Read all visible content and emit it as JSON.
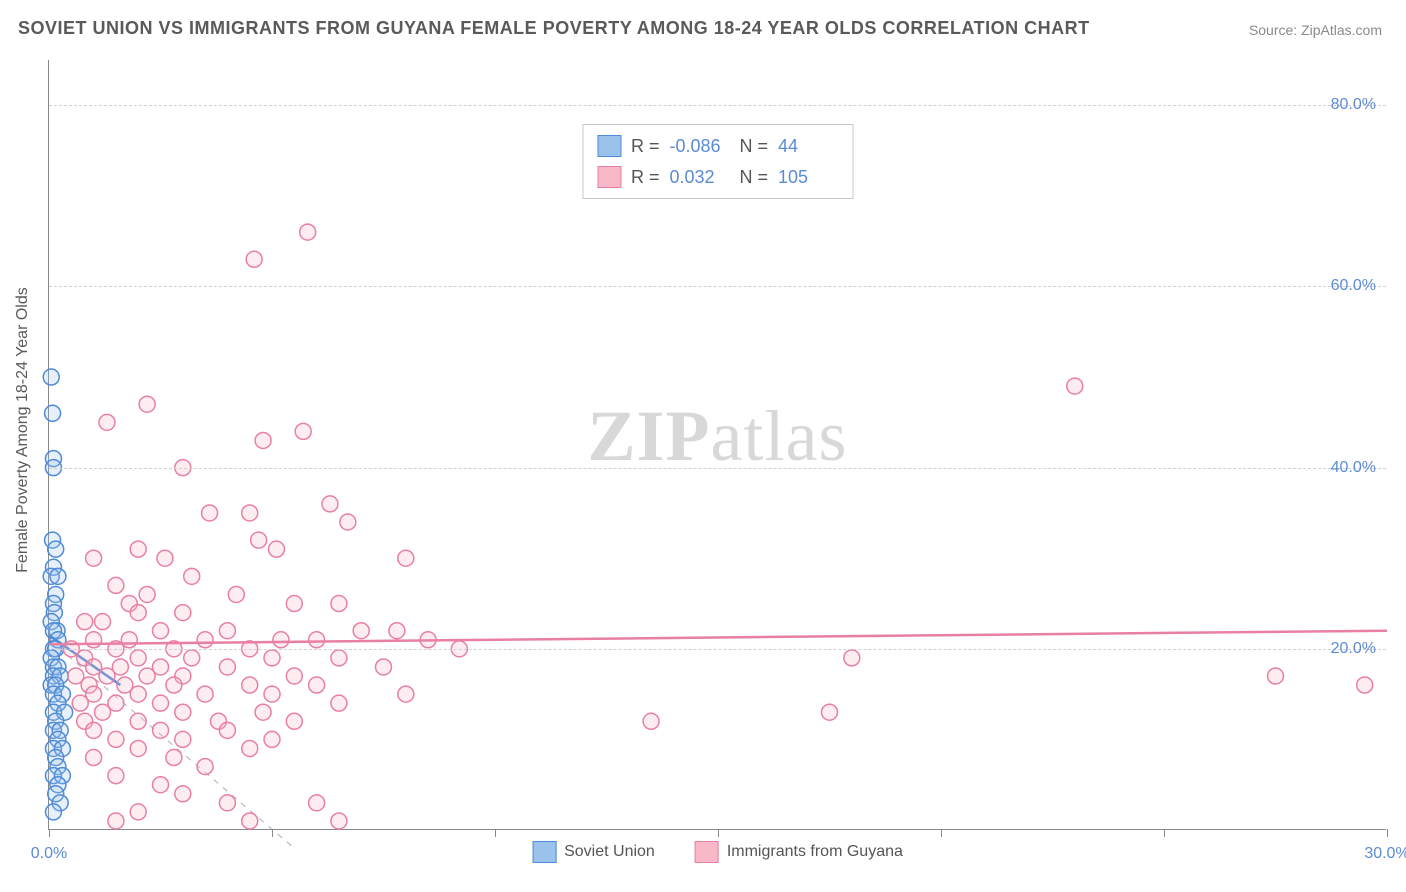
{
  "title": "SOVIET UNION VS IMMIGRANTS FROM GUYANA FEMALE POVERTY AMONG 18-24 YEAR OLDS CORRELATION CHART",
  "source": "Source: ZipAtlas.com",
  "watermark": {
    "bold": "ZIP",
    "rest": "atlas"
  },
  "y_axis_title": "Female Poverty Among 18-24 Year Olds",
  "chart": {
    "type": "scatter",
    "background_color": "#ffffff",
    "grid_color": "#d0d0d0",
    "axis_color": "#888888",
    "tick_label_color": "#5b8bd4",
    "text_color": "#5a5a5a",
    "xlim": [
      0,
      30
    ],
    "ylim": [
      0,
      85
    ],
    "x_ticks": [
      0,
      5,
      10,
      15,
      20,
      25,
      30
    ],
    "x_tick_labels_shown": {
      "0": "0.0%",
      "30": "30.0%"
    },
    "y_ticks": [
      20,
      40,
      60,
      80
    ],
    "y_tick_labels": {
      "20": "20.0%",
      "40": "40.0%",
      "60": "60.0%",
      "80": "80.0%"
    },
    "marker_radius": 8,
    "marker_stroke_width": 1.5,
    "marker_fill_opacity": 0.25,
    "trend_line_width": 2.5,
    "diag_dash": "6,6",
    "diag_color": "#bbbbbb"
  },
  "series": [
    {
      "id": "soviet",
      "label": "Soviet Union",
      "color_fill": "#9bc2ea",
      "color_stroke": "#4f8bd6",
      "R": "-0.086",
      "N": "44",
      "trend": {
        "x1": 0,
        "y1": 21.5,
        "x2": 1.6,
        "y2": 16.0
      },
      "points": [
        [
          0.05,
          50
        ],
        [
          0.08,
          46
        ],
        [
          0.1,
          41
        ],
        [
          0.1,
          40
        ],
        [
          0.08,
          32
        ],
        [
          0.15,
          31
        ],
        [
          0.1,
          29
        ],
        [
          0.05,
          28
        ],
        [
          0.2,
          28
        ],
        [
          0.15,
          26
        ],
        [
          0.1,
          25
        ],
        [
          0.12,
          24
        ],
        [
          0.05,
          23
        ],
        [
          0.18,
          22
        ],
        [
          0.1,
          22
        ],
        [
          0.2,
          21
        ],
        [
          0.1,
          20
        ],
        [
          0.15,
          20
        ],
        [
          0.05,
          19
        ],
        [
          0.1,
          18
        ],
        [
          0.2,
          18
        ],
        [
          0.1,
          17
        ],
        [
          0.25,
          17
        ],
        [
          0.05,
          16
        ],
        [
          0.15,
          16
        ],
        [
          0.1,
          15
        ],
        [
          0.3,
          15
        ],
        [
          0.2,
          14
        ],
        [
          0.1,
          13
        ],
        [
          0.35,
          13
        ],
        [
          0.15,
          12
        ],
        [
          0.1,
          11
        ],
        [
          0.25,
          11
        ],
        [
          0.2,
          10
        ],
        [
          0.1,
          9
        ],
        [
          0.3,
          9
        ],
        [
          0.15,
          8
        ],
        [
          0.2,
          7
        ],
        [
          0.1,
          6
        ],
        [
          0.3,
          6
        ],
        [
          0.2,
          5
        ],
        [
          0.15,
          4
        ],
        [
          0.25,
          3
        ],
        [
          0.1,
          2
        ]
      ]
    },
    {
      "id": "guyana",
      "label": "Immigrants from Guyana",
      "color_fill": "#f7b8c8",
      "color_stroke": "#e97fa2",
      "R": "0.032",
      "N": "105",
      "trend": {
        "x1": 0,
        "y1": 20.5,
        "x2": 30,
        "y2": 22.0
      },
      "points": [
        [
          5.8,
          66
        ],
        [
          4.6,
          63
        ],
        [
          23.0,
          49
        ],
        [
          2.2,
          47
        ],
        [
          1.3,
          45
        ],
        [
          4.8,
          43
        ],
        [
          5.7,
          44
        ],
        [
          3.0,
          40
        ],
        [
          6.3,
          36
        ],
        [
          3.6,
          35
        ],
        [
          4.5,
          35
        ],
        [
          6.7,
          34
        ],
        [
          2.0,
          31
        ],
        [
          4.7,
          32
        ],
        [
          5.1,
          31
        ],
        [
          8.0,
          30
        ],
        [
          2.6,
          30
        ],
        [
          1.0,
          30
        ],
        [
          3.2,
          28
        ],
        [
          1.5,
          27
        ],
        [
          2.2,
          26
        ],
        [
          4.2,
          26
        ],
        [
          1.8,
          25
        ],
        [
          5.5,
          25
        ],
        [
          6.5,
          25
        ],
        [
          2.0,
          24
        ],
        [
          3.0,
          24
        ],
        [
          0.8,
          23
        ],
        [
          1.2,
          23
        ],
        [
          2.5,
          22
        ],
        [
          4.0,
          22
        ],
        [
          7.0,
          22
        ],
        [
          7.8,
          22
        ],
        [
          1.0,
          21
        ],
        [
          1.8,
          21
        ],
        [
          3.5,
          21
        ],
        [
          5.2,
          21
        ],
        [
          6.0,
          21
        ],
        [
          8.5,
          21
        ],
        [
          9.2,
          20
        ],
        [
          0.5,
          20
        ],
        [
          1.5,
          20
        ],
        [
          2.8,
          20
        ],
        [
          4.5,
          20
        ],
        [
          18.0,
          19
        ],
        [
          0.8,
          19
        ],
        [
          2.0,
          19
        ],
        [
          3.2,
          19
        ],
        [
          5.0,
          19
        ],
        [
          6.5,
          19
        ],
        [
          1.0,
          18
        ],
        [
          1.6,
          18
        ],
        [
          2.5,
          18
        ],
        [
          4.0,
          18
        ],
        [
          7.5,
          18
        ],
        [
          0.6,
          17
        ],
        [
          1.3,
          17
        ],
        [
          2.2,
          17
        ],
        [
          3.0,
          17
        ],
        [
          5.5,
          17
        ],
        [
          27.5,
          17
        ],
        [
          29.5,
          16
        ],
        [
          0.9,
          16
        ],
        [
          1.7,
          16
        ],
        [
          2.8,
          16
        ],
        [
          4.5,
          16
        ],
        [
          6.0,
          16
        ],
        [
          1.0,
          15
        ],
        [
          2.0,
          15
        ],
        [
          3.5,
          15
        ],
        [
          5.0,
          15
        ],
        [
          8.0,
          15
        ],
        [
          0.7,
          14
        ],
        [
          1.5,
          14
        ],
        [
          2.5,
          14
        ],
        [
          6.5,
          14
        ],
        [
          1.2,
          13
        ],
        [
          3.0,
          13
        ],
        [
          4.8,
          13
        ],
        [
          17.5,
          13
        ],
        [
          13.5,
          12
        ],
        [
          0.8,
          12
        ],
        [
          2.0,
          12
        ],
        [
          3.8,
          12
        ],
        [
          5.5,
          12
        ],
        [
          1.0,
          11
        ],
        [
          2.5,
          11
        ],
        [
          4.0,
          11
        ],
        [
          1.5,
          10
        ],
        [
          3.0,
          10
        ],
        [
          5.0,
          10
        ],
        [
          2.0,
          9
        ],
        [
          4.5,
          9
        ],
        [
          1.0,
          8
        ],
        [
          2.8,
          8
        ],
        [
          3.5,
          7
        ],
        [
          1.5,
          6
        ],
        [
          2.5,
          5
        ],
        [
          3.0,
          4
        ],
        [
          4.0,
          3
        ],
        [
          6.0,
          3
        ],
        [
          2.0,
          2
        ],
        [
          6.5,
          1
        ],
        [
          4.5,
          1
        ],
        [
          1.5,
          1
        ]
      ]
    }
  ],
  "corr_box": {
    "r_label": "R =",
    "n_label": "N ="
  },
  "legend_labels": {
    "soviet": "Soviet Union",
    "guyana": "Immigrants from Guyana"
  }
}
